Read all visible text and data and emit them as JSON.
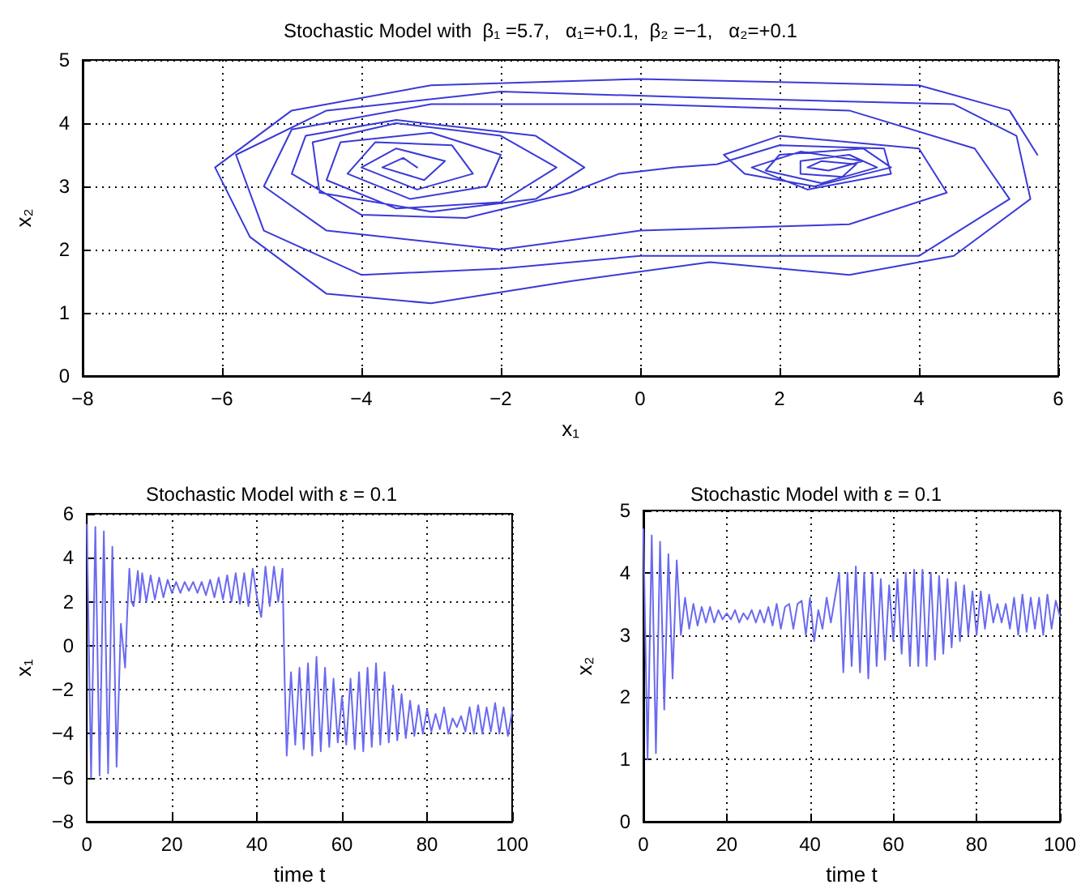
{
  "chart_data": [
    {
      "type": "line",
      "title": "Stochastic Model with  β₁ =5.7,   α₁=+0.1,  β₂ =−1,   α₂=+0.1",
      "xlabel": "x₁",
      "ylabel": "x₂",
      "xlim": [
        -8,
        6
      ],
      "xticks": [
        -8,
        -6,
        -4,
        -2,
        0,
        2,
        4,
        6
      ],
      "ylim": [
        0,
        5
      ],
      "yticks": [
        0,
        1,
        2,
        3,
        4,
        5
      ],
      "grid": true,
      "marker": "none",
      "line_style": "solid",
      "series": [
        {
          "color": "#3a3ad8",
          "x": [
            5.7,
            5.3,
            4,
            0,
            -3,
            -5,
            -6.1,
            -5.6,
            -4.5,
            -3,
            -1,
            1,
            3,
            4.5,
            5.6,
            5.4,
            4.5,
            1,
            -2,
            -4.5,
            -5.8,
            -5.4,
            -4,
            -2,
            0,
            2,
            4,
            5.3,
            4.8,
            3,
            0,
            -3,
            -5,
            -5.4,
            -4.5,
            -2,
            0,
            3,
            4.4,
            4,
            2,
            1.2,
            1.5,
            2.5,
            3.6,
            3.2,
            2,
            1.8,
            2.6,
            3.4,
            3,
            2.3,
            2.3,
            2.9,
            3.1,
            2.6,
            2.4,
            2.7,
            3.2,
            2.3,
            1.6,
            2.4,
            3.6,
            3.5,
            2,
            1.1,
            0.5,
            -0.3,
            -1,
            -2.5,
            -4,
            -5,
            -4.8,
            -3.5,
            -1.5,
            -0.8,
            -1.5,
            -3,
            -4.6,
            -4.7,
            -3.5,
            -2,
            -1.2,
            -2,
            -3.5,
            -4.5,
            -4.3,
            -3,
            -2,
            -2.2,
            -3.3,
            -4.2,
            -3.8,
            -2.7,
            -2.4,
            -3.2,
            -4,
            -3.5,
            -2.8,
            -3.1,
            -3.7,
            -3.4,
            -3.2
          ],
          "values": [
            3.5,
            4.2,
            4.6,
            4.7,
            4.6,
            4.2,
            3.3,
            2.2,
            1.3,
            1.15,
            1.5,
            1.8,
            1.6,
            1.9,
            2.8,
            3.8,
            4.3,
            4.4,
            4.5,
            4.2,
            3.5,
            2.3,
            1.6,
            1.7,
            1.9,
            1.9,
            1.9,
            2.8,
            3.6,
            4.2,
            4.3,
            4.3,
            3.9,
            3,
            2.3,
            2,
            2.3,
            2.4,
            2.9,
            3.6,
            3.8,
            3.5,
            3.2,
            3,
            3.3,
            3.6,
            3.5,
            3.25,
            3.05,
            3.3,
            3.5,
            3.4,
            3.2,
            3.15,
            3.35,
            3.4,
            3.3,
            3.25,
            3.4,
            3.55,
            3.3,
            2.95,
            3.2,
            3.6,
            3.65,
            3.35,
            3.3,
            3.2,
            2.9,
            2.5,
            2.55,
            3.2,
            3.8,
            4.05,
            3.8,
            3.3,
            2.8,
            2.6,
            2.9,
            3.7,
            4,
            3.8,
            3.3,
            2.75,
            2.65,
            3.1,
            3.7,
            3.85,
            3.5,
            3,
            2.8,
            3.2,
            3.7,
            3.65,
            3.2,
            2.95,
            3.3,
            3.6,
            3.4,
            3.1,
            3.3,
            3.45,
            3.3
          ]
        }
      ]
    },
    {
      "type": "line",
      "title": "Stochastic Model with ε = 0.1",
      "xlabel": "time t",
      "ylabel": "x₁",
      "xlim": [
        0,
        100
      ],
      "xticks": [
        0,
        20,
        40,
        60,
        80,
        100
      ],
      "ylim": [
        -8,
        6
      ],
      "yticks": [
        -8,
        -6,
        -4,
        -2,
        0,
        2,
        4,
        6
      ],
      "grid": true,
      "marker": "none",
      "line_style": "solid",
      "series": [
        {
          "color": "#6a6af0",
          "x": [
            0,
            1,
            2,
            3,
            4,
            5,
            6,
            7,
            8,
            9,
            9.5,
            10,
            10.5,
            11,
            12,
            12.5,
            13,
            14,
            15,
            16,
            17,
            18,
            19,
            20,
            21,
            22,
            23,
            24,
            25,
            26,
            27,
            28,
            29,
            30,
            31,
            32,
            33,
            34,
            35,
            36,
            37,
            38,
            39,
            40,
            41,
            42,
            43,
            44,
            45,
            46,
            46.5,
            47,
            48,
            49,
            50,
            51,
            52,
            53,
            54,
            55,
            56,
            57,
            58,
            59,
            60,
            61,
            62,
            63,
            64,
            65,
            66,
            67,
            68,
            69,
            70,
            71,
            72,
            73,
            74,
            75,
            76,
            77,
            78,
            79,
            80,
            81,
            82,
            83,
            84,
            85,
            86,
            87,
            88,
            89,
            90,
            91,
            92,
            93,
            94,
            95,
            96,
            97,
            98,
            99,
            100
          ],
          "values": [
            5.5,
            -6,
            5.4,
            -5.9,
            5.2,
            -5.8,
            4.5,
            -5.5,
            1,
            -1,
            1.5,
            3.5,
            2,
            1.8,
            3.4,
            2,
            3.3,
            2,
            3.2,
            2.1,
            3.1,
            2.2,
            3,
            2.4,
            2.9,
            2.4,
            2.9,
            2.5,
            2.9,
            2.4,
            2.9,
            2.3,
            3,
            2.2,
            3.1,
            2.1,
            3.2,
            2,
            3.3,
            1.9,
            3.3,
            1.8,
            3.5,
            2.2,
            1.3,
            3.6,
            1.8,
            3.6,
            2,
            3.5,
            -1.5,
            -5,
            -1.2,
            -4.5,
            -1,
            -4.7,
            -0.8,
            -5,
            -0.5,
            -4.8,
            -1,
            -4.6,
            -1.5,
            -4.4,
            -2.3,
            -4.5,
            -1.5,
            -4.7,
            -1.2,
            -4.8,
            -1,
            -4.6,
            -0.8,
            -4.5,
            -1.2,
            -4.4,
            -1.8,
            -4.3,
            -2.2,
            -4.2,
            -2.5,
            -4.1,
            -2.7,
            -4,
            -2.9,
            -3.9,
            -3.1,
            -3.8,
            -2.8,
            -4,
            -3.3,
            -3.7,
            -3.2,
            -3.9,
            -2.8,
            -4,
            -2.7,
            -4,
            -2.8,
            -3.9,
            -2.6,
            -4,
            -2.8,
            -4.1,
            -3
          ]
        }
      ]
    },
    {
      "type": "line",
      "title": "Stochastic Model with ε = 0.1",
      "xlabel": "time t",
      "ylabel": "x₂",
      "xlim": [
        0,
        100
      ],
      "xticks": [
        0,
        20,
        40,
        60,
        80,
        100
      ],
      "ylim": [
        0,
        5
      ],
      "yticks": [
        0,
        1,
        2,
        3,
        4,
        5
      ],
      "grid": true,
      "marker": "none",
      "line_style": "solid",
      "series": [
        {
          "color": "#6a6af0",
          "x": [
            0,
            1,
            2,
            3,
            4,
            5,
            6,
            7,
            8,
            9,
            10,
            11,
            12,
            13,
            14,
            15,
            16,
            17,
            18,
            19,
            20,
            21,
            22,
            23,
            24,
            25,
            26,
            27,
            28,
            29,
            30,
            31,
            32,
            33,
            34,
            35,
            36,
            37,
            38,
            39,
            40,
            41,
            42,
            43,
            44,
            45,
            46,
            47,
            48,
            49,
            50,
            51,
            52,
            53,
            54,
            55,
            56,
            57,
            58,
            59,
            60,
            61,
            62,
            63,
            64,
            65,
            66,
            67,
            68,
            69,
            70,
            71,
            72,
            73,
            74,
            75,
            76,
            77,
            78,
            79,
            80,
            81,
            82,
            83,
            84,
            85,
            86,
            87,
            88,
            89,
            90,
            91,
            92,
            93,
            94,
            95,
            96,
            97,
            98,
            99,
            100
          ],
          "values": [
            4.7,
            1,
            4.6,
            1.1,
            4.5,
            1.8,
            4.3,
            2.3,
            4.2,
            3,
            3.6,
            3.1,
            3.5,
            3.15,
            3.45,
            3.2,
            3.45,
            3.2,
            3.4,
            3.25,
            3.35,
            3.25,
            3.4,
            3.2,
            3.35,
            3.25,
            3.4,
            3.2,
            3.4,
            3.2,
            3.45,
            3.15,
            3.5,
            3.1,
            3.45,
            3.5,
            3.1,
            3.5,
            3.55,
            3,
            3.6,
            2.9,
            3.4,
            3.1,
            3.6,
            3.2,
            3.6,
            4,
            2.4,
            4,
            2.5,
            4.1,
            2.4,
            4,
            2.3,
            4,
            2.5,
            3.9,
            2.6,
            3.8,
            2.9,
            3.9,
            2.7,
            4,
            2.5,
            4.05,
            2.5,
            4.05,
            2.5,
            4,
            2.6,
            3.95,
            2.7,
            3.9,
            2.8,
            3.85,
            2.9,
            3.8,
            3,
            3.7,
            3,
            3.7,
            3.1,
            3.65,
            3.2,
            3.5,
            3.2,
            3.5,
            3.1,
            3.6,
            3,
            3.65,
            3.05,
            3.6,
            3.1,
            3.6,
            3,
            3.65,
            3.1,
            3.55,
            3.3
          ]
        }
      ]
    }
  ]
}
